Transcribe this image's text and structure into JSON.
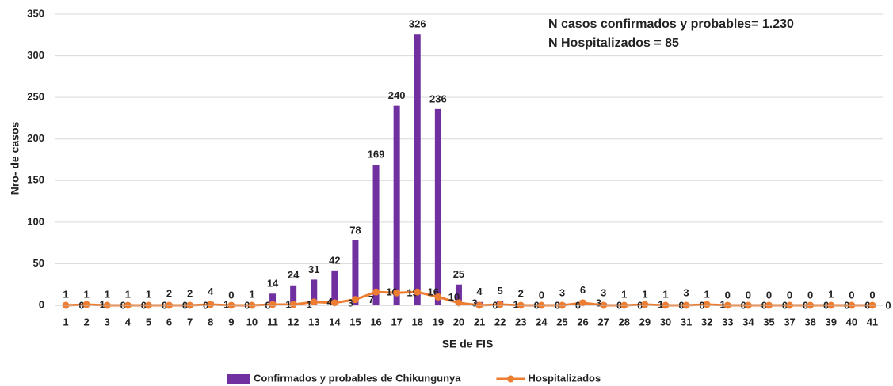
{
  "chart_data": {
    "type": "bar",
    "x_label": "SE de FIS",
    "y_label": "Nro- de casos",
    "annotations": [
      "N casos confirmados y probables= 1.230",
      "N Hospitalizados = 85"
    ],
    "categories": [
      "1",
      "2",
      "3",
      "4",
      "5",
      "6",
      "7",
      "8",
      "9",
      "10",
      "11",
      "12",
      "13",
      "14",
      "15",
      "16",
      "17",
      "18",
      "19",
      "20",
      "21",
      "22",
      "23",
      "24",
      "25",
      "26",
      "27",
      "28",
      "29",
      "30",
      "31",
      "32",
      "33",
      "34",
      "35",
      "37",
      "38",
      "39",
      "40",
      "41"
    ],
    "series": [
      {
        "name": "Confirmados y probables de Chikungunya",
        "type": "bar",
        "color": "#7030a0",
        "values": [
          1,
          1,
          1,
          1,
          1,
          2,
          2,
          4,
          0,
          1,
          14,
          24,
          31,
          42,
          78,
          169,
          240,
          326,
          236,
          25,
          4,
          5,
          2,
          0,
          3,
          6,
          3,
          1,
          1,
          1,
          3,
          1,
          0,
          0,
          0,
          0,
          0,
          1,
          0,
          0
        ]
      },
      {
        "name": "Hospitalizados",
        "type": "line",
        "color": "#ed7d31",
        "values": [
          0,
          1,
          0,
          0,
          0,
          0,
          0,
          1,
          0,
          0,
          1,
          1,
          4,
          3,
          7,
          16,
          15,
          16,
          10,
          3,
          0,
          1,
          0,
          0,
          0,
          3,
          0,
          0,
          1,
          0,
          0,
          1,
          0,
          0,
          0,
          0,
          0,
          0,
          0,
          0
        ]
      }
    ],
    "ylim": [
      0,
      350
    ],
    "yticks": [
      0,
      50,
      100,
      150,
      200,
      250,
      300,
      350
    ],
    "grid": true,
    "legend": "bottom"
  }
}
